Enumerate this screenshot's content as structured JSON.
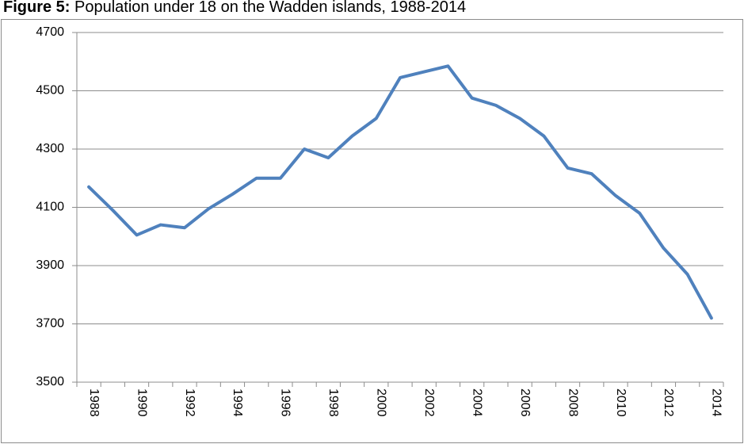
{
  "chart_data": {
    "type": "line",
    "title_label": "Figure 5:",
    "title": "Population under 18 on the Wadden islands, 1988-2014",
    "categories": [
      "1988",
      null,
      "1990",
      null,
      "1992",
      null,
      "1994",
      null,
      "1996",
      null,
      "1998",
      null,
      "2000",
      null,
      "2002",
      null,
      "2004",
      null,
      "2006",
      null,
      "2008",
      null,
      "2010",
      null,
      "2012",
      null,
      "2014"
    ],
    "series": [
      {
        "name": "Population under 18",
        "color": "#4f81bd",
        "values": [
          4170,
          4090,
          4005,
          4040,
          4030,
          4095,
          4145,
          4200,
          4200,
          4300,
          4270,
          4345,
          4405,
          4545,
          4565,
          4585,
          4475,
          4450,
          4405,
          4345,
          4235,
          4215,
          4140,
          4080,
          3960,
          3870,
          3720
        ]
      }
    ],
    "ylim": [
      3500,
      4700
    ],
    "yticks": [
      3500,
      3700,
      3900,
      4100,
      4300,
      4500,
      4700
    ],
    "grid": true
  }
}
